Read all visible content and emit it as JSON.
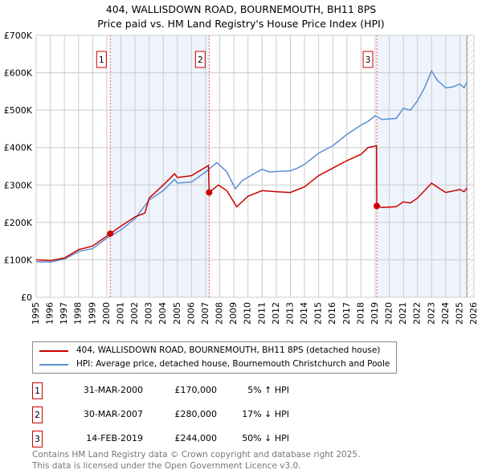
{
  "chart_data": {
    "type": "line",
    "title": "404, WALLISDOWN ROAD, BOURNEMOUTH, BH11 8PS",
    "subtitle": "Price paid vs. HM Land Registry's House Price Index (HPI)",
    "xlim": [
      1995,
      2026
    ],
    "ylim": [
      0,
      700000
    ],
    "x_ticks": [
      "1995",
      "1996",
      "1997",
      "1998",
      "1999",
      "2000",
      "2001",
      "2002",
      "2003",
      "2004",
      "2005",
      "2006",
      "2007",
      "2008",
      "2009",
      "2010",
      "2011",
      "2012",
      "2013",
      "2014",
      "2015",
      "2016",
      "2017",
      "2018",
      "2019",
      "2020",
      "2021",
      "2022",
      "2023",
      "2024",
      "2025",
      "2026"
    ],
    "y_ticks": [
      {
        "v": 0,
        "label": "£0"
      },
      {
        "v": 100000,
        "label": "£100K"
      },
      {
        "v": 200000,
        "label": "£200K"
      },
      {
        "v": 300000,
        "label": "£300K"
      },
      {
        "v": 400000,
        "label": "£400K"
      },
      {
        "v": 500000,
        "label": "£500K"
      },
      {
        "v": 600000,
        "label": "£600K"
      },
      {
        "v": 700000,
        "label": "£700K"
      }
    ],
    "grid": true,
    "series": [
      {
        "name": "404, WALLISDOWN ROAD, BOURNEMOUTH, BH11 8PS (detached house)",
        "color": "#cc0000",
        "points": [
          [
            1995,
            100000
          ],
          [
            1996,
            98000
          ],
          [
            1997,
            105000
          ],
          [
            1998,
            127000
          ],
          [
            1999,
            137000
          ],
          [
            2000.25,
            170000
          ],
          [
            2001,
            190000
          ],
          [
            2002,
            215000
          ],
          [
            2002.7,
            225000
          ],
          [
            2003,
            265000
          ],
          [
            2004,
            300000
          ],
          [
            2004.8,
            330000
          ],
          [
            2005,
            320000
          ],
          [
            2006,
            325000
          ],
          [
            2007.2,
            352000
          ],
          [
            2007.25,
            280000
          ],
          [
            2007.9,
            300000
          ],
          [
            2008.5,
            285000
          ],
          [
            2009.2,
            242000
          ],
          [
            2010,
            270000
          ],
          [
            2011,
            285000
          ],
          [
            2012,
            282000
          ],
          [
            2013,
            280000
          ],
          [
            2014,
            295000
          ],
          [
            2015,
            325000
          ],
          [
            2016,
            345000
          ],
          [
            2017,
            365000
          ],
          [
            2018,
            382000
          ],
          [
            2018.5,
            400000
          ],
          [
            2019.1,
            405000
          ],
          [
            2019.12,
            244000
          ],
          [
            2019.5,
            240000
          ],
          [
            2020.5,
            242000
          ],
          [
            2021,
            255000
          ],
          [
            2021.5,
            252000
          ],
          [
            2022,
            265000
          ],
          [
            2023,
            305000
          ],
          [
            2023.5,
            292000
          ],
          [
            2024,
            280000
          ],
          [
            2025,
            288000
          ],
          [
            2025.3,
            282000
          ],
          [
            2025.5,
            292000
          ]
        ]
      },
      {
        "name": "HPI: Average price, detached house, Bournemouth Christchurch and Poole",
        "color": "#5b8fd4",
        "points": [
          [
            1995,
            95000
          ],
          [
            1996,
            94000
          ],
          [
            1997,
            102000
          ],
          [
            1998,
            122000
          ],
          [
            1999,
            130000
          ],
          [
            2000,
            158000
          ],
          [
            2001,
            180000
          ],
          [
            2002,
            210000
          ],
          [
            2003,
            260000
          ],
          [
            2004,
            285000
          ],
          [
            2004.8,
            315000
          ],
          [
            2005,
            305000
          ],
          [
            2006,
            308000
          ],
          [
            2007,
            335000
          ],
          [
            2007.8,
            360000
          ],
          [
            2008.5,
            335000
          ],
          [
            2009.1,
            290000
          ],
          [
            2009.6,
            312000
          ],
          [
            2010.5,
            332000
          ],
          [
            2011,
            342000
          ],
          [
            2011.5,
            335000
          ],
          [
            2012,
            336000
          ],
          [
            2013,
            338000
          ],
          [
            2013.5,
            345000
          ],
          [
            2014,
            355000
          ],
          [
            2015,
            385000
          ],
          [
            2016,
            405000
          ],
          [
            2017,
            435000
          ],
          [
            2018,
            460000
          ],
          [
            2018.5,
            470000
          ],
          [
            2019,
            485000
          ],
          [
            2019.5,
            475000
          ],
          [
            2020.5,
            478000
          ],
          [
            2021,
            505000
          ],
          [
            2021.5,
            500000
          ],
          [
            2022,
            525000
          ],
          [
            2022.5,
            560000
          ],
          [
            2023,
            605000
          ],
          [
            2023.4,
            580000
          ],
          [
            2024,
            560000
          ],
          [
            2024.5,
            562000
          ],
          [
            2025,
            570000
          ],
          [
            2025.3,
            560000
          ],
          [
            2025.5,
            575000
          ]
        ]
      }
    ],
    "sales": [
      {
        "label": "1",
        "x": 2000.25,
        "y": 170000,
        "date": "31-MAR-2000",
        "price": "£170,000",
        "hpi": "5% ↑ HPI"
      },
      {
        "label": "2",
        "x": 2007.25,
        "y": 280000,
        "date": "30-MAR-2007",
        "price": "£280,000",
        "hpi": "17% ↓ HPI"
      },
      {
        "label": "3",
        "x": 2019.12,
        "y": 244000,
        "date": "14-FEB-2019",
        "price": "£244,000",
        "hpi": "50% ↓ HPI"
      }
    ],
    "shaded_ranges": [
      [
        2000.25,
        2007.25
      ],
      [
        2019.12,
        2025.5
      ]
    ],
    "forecast_from": 2025.5,
    "legend_position": "below"
  },
  "footer": {
    "line1": "Contains HM Land Registry data © Crown copyright and database right 2025.",
    "line2": "This data is licensed under the Open Government Licence v3.0."
  }
}
